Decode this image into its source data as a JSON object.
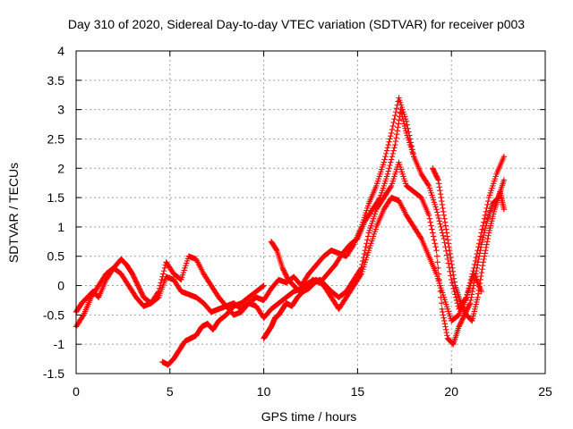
{
  "chart_data": {
    "type": "scatter",
    "title": "Day 310 of 2020, Sidereal Day-to-day VTEC variation (SDTVAR) for receiver p003",
    "xlabel": "GPS time / hours",
    "ylabel": "SDTVAR / TECUs",
    "xlim": [
      0,
      25
    ],
    "ylim": [
      -1.5,
      4
    ],
    "xticks": [
      "0",
      "5",
      "10",
      "15",
      "20",
      "25"
    ],
    "yticks": [
      "-1.5",
      "-1",
      "-0.5",
      "0",
      "0.5",
      "1",
      "1.5",
      "2",
      "2.5",
      "3",
      "3.5",
      "4"
    ],
    "grid": true,
    "marker": "+",
    "series": [
      {
        "name": "track A",
        "color": "#ff0000",
        "x": [
          0.0,
          0.3,
          0.6,
          0.9,
          1.2,
          1.6,
          2.0,
          2.4,
          2.7,
          3.0,
          3.3,
          3.6,
          4.0,
          4.4,
          4.8,
          5.2,
          5.6,
          6.0,
          6.4,
          6.8,
          7.2,
          7.6,
          8.0,
          8.4,
          8.8,
          9.2,
          9.6,
          10.0,
          10.4,
          10.8,
          11.2,
          11.6,
          12.0,
          12.4,
          12.8,
          13.2,
          13.6,
          14.0,
          14.4,
          14.8,
          15.2,
          15.6,
          16.0,
          16.4,
          16.8,
          17.2,
          17.6,
          18.0,
          18.4,
          18.8,
          19.2,
          19.6,
          20.0,
          20.4,
          20.8,
          21.2,
          21.6,
          22.0,
          22.4,
          22.8
        ],
        "y": [
          -0.45,
          -0.3,
          -0.2,
          -0.1,
          -0.2,
          0.1,
          0.3,
          0.45,
          0.35,
          0.2,
          0.0,
          -0.2,
          -0.3,
          -0.1,
          0.4,
          0.2,
          0.1,
          0.5,
          0.45,
          0.2,
          0.0,
          -0.2,
          -0.35,
          -0.3,
          -0.4,
          -0.3,
          -0.2,
          -0.25,
          -0.05,
          0.1,
          0.05,
          0.15,
          0.0,
          0.2,
          0.35,
          0.5,
          0.6,
          0.55,
          0.5,
          0.7,
          1.0,
          1.4,
          1.7,
          2.1,
          2.6,
          3.2,
          2.8,
          2.2,
          1.9,
          1.7,
          1.3,
          0.8,
          0.1,
          -0.4,
          -0.2,
          0.3,
          0.9,
          1.5,
          1.9,
          2.2
        ]
      },
      {
        "name": "track B",
        "color": "#ff0000",
        "x": [
          0.0,
          0.4,
          0.8,
          1.2,
          1.6,
          2.0,
          2.4,
          2.8,
          3.2,
          3.6,
          4.0,
          4.4,
          4.8,
          5.2,
          5.6,
          6.0,
          6.4,
          6.8,
          7.2,
          7.6,
          8.0,
          8.4,
          8.8,
          9.2,
          9.6,
          10.0,
          10.4,
          10.8,
          11.2,
          11.6,
          12.0,
          12.4,
          12.8,
          13.2,
          13.6,
          14.0,
          14.4,
          14.8,
          15.2,
          15.6,
          16.0,
          16.4,
          16.8,
          17.2,
          17.6,
          18.0,
          18.4,
          18.8,
          19.2,
          19.6,
          20.0,
          20.4,
          20.8,
          21.2,
          21.6
        ],
        "y": [
          -0.7,
          -0.5,
          -0.2,
          0.0,
          0.2,
          0.3,
          0.2,
          0.0,
          -0.2,
          -0.35,
          -0.3,
          -0.2,
          0.15,
          0.1,
          -0.1,
          -0.15,
          -0.2,
          -0.3,
          -0.45,
          -0.4,
          -0.35,
          -0.5,
          -0.45,
          -0.3,
          -0.35,
          -0.55,
          -0.4,
          -0.3,
          -0.2,
          -0.1,
          -0.05,
          0.05,
          0.1,
          0.0,
          -0.2,
          -0.4,
          -0.2,
          0.0,
          0.2,
          0.6,
          1.0,
          1.3,
          1.5,
          1.45,
          1.2,
          1.0,
          0.8,
          0.5,
          0.2,
          -0.2,
          -0.6,
          -0.5,
          -0.2,
          0.2,
          -0.1
        ]
      },
      {
        "name": "track C",
        "color": "#ff0000",
        "x": [
          4.6,
          4.9,
          5.2,
          5.5,
          5.8,
          6.1,
          6.4,
          6.7,
          7.0,
          7.3,
          7.6,
          8.0,
          8.4,
          8.8,
          9.2,
          9.6,
          10.0
        ],
        "y": [
          -1.3,
          -1.35,
          -1.25,
          -1.1,
          -0.95,
          -0.9,
          -0.85,
          -0.7,
          -0.65,
          -0.75,
          -0.6,
          -0.5,
          -0.35,
          -0.3,
          -0.2,
          -0.1,
          0.0
        ]
      },
      {
        "name": "track D",
        "color": "#ff0000",
        "x": [
          10.0,
          10.2,
          10.4,
          10.6,
          10.8,
          11.0,
          11.2,
          11.5,
          11.8,
          12.1,
          12.4,
          12.7,
          13.0,
          13.3,
          13.6,
          14.0,
          14.4,
          14.8,
          15.2,
          15.6,
          16.0,
          16.4,
          16.8,
          17.2,
          17.6,
          18.0,
          18.4,
          18.8,
          19.2,
          19.5,
          19.8,
          20.1,
          20.4,
          20.7,
          21.0,
          21.3,
          21.6,
          21.9,
          22.2,
          22.5,
          22.8
        ],
        "y": [
          -0.9,
          -0.8,
          -0.7,
          -0.55,
          -0.5,
          -0.4,
          -0.3,
          -0.35,
          -0.2,
          -0.1,
          -0.05,
          0.05,
          0.1,
          0.0,
          -0.1,
          -0.2,
          -0.1,
          0.1,
          0.3,
          0.9,
          1.3,
          1.5,
          1.7,
          2.1,
          1.7,
          1.6,
          1.5,
          1.2,
          0.6,
          -0.4,
          -0.9,
          -1.0,
          -0.7,
          -0.5,
          -0.3,
          0.2,
          0.7,
          1.1,
          1.4,
          1.5,
          1.8
        ]
      },
      {
        "name": "track E",
        "color": "#ff0000",
        "x": [
          10.4,
          10.7,
          11.0,
          11.3,
          11.6,
          11.9,
          12.2,
          12.6,
          13.0,
          13.4,
          13.8,
          14.2,
          14.6,
          15.0,
          15.4,
          15.8,
          16.2,
          16.6,
          17.0,
          17.3,
          17.6,
          18.0
        ],
        "y": [
          0.75,
          0.6,
          0.3,
          0.1,
          0.0,
          -0.1,
          -0.05,
          0.1,
          0.05,
          0.2,
          0.35,
          0.55,
          0.7,
          0.8,
          1.1,
          1.3,
          1.5,
          1.9,
          2.4,
          3.0,
          2.6,
          2.2
        ]
      },
      {
        "name": "track F",
        "color": "#ff0000",
        "x": [
          19.0,
          19.3,
          19.6,
          19.9,
          20.2,
          20.5,
          20.8,
          21.1,
          21.4,
          21.7,
          22.0,
          22.3,
          22.6,
          22.8
        ],
        "y": [
          2.0,
          1.8,
          1.2,
          0.6,
          0.0,
          -0.3,
          -0.5,
          -0.6,
          -0.2,
          0.4,
          0.9,
          1.3,
          1.6,
          1.3
        ]
      }
    ]
  }
}
